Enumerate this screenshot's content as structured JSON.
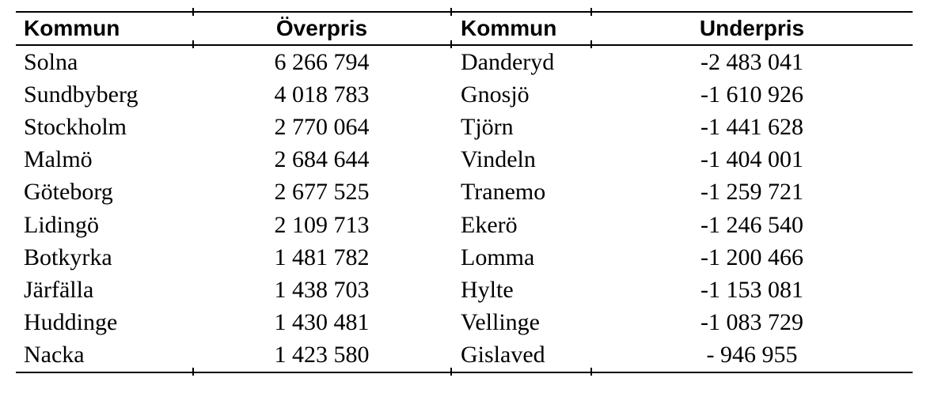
{
  "document": {
    "background": "#ffffff",
    "text_color": "#000000",
    "rule_color": "#000000"
  },
  "chart_data": {
    "type": "table",
    "title": "",
    "columns": [
      "Kommun",
      "Överpris",
      "Kommun",
      "Underpris"
    ],
    "rows": [
      [
        "Solna",
        "6 266 794",
        "Danderyd",
        "-2 483 041"
      ],
      [
        "Sundbyberg",
        "4 018 783",
        "Gnosjö",
        "-1 610 926"
      ],
      [
        "Stockholm",
        "2 770 064",
        "Tjörn",
        "-1 441 628"
      ],
      [
        "Malmö",
        "2 684 644",
        "Vindeln",
        "-1 404 001"
      ],
      [
        "Göteborg",
        "2 677 525",
        "Tranemo",
        "-1 259 721"
      ],
      [
        "Lidingö",
        "2 109 713",
        "Ekerö",
        "-1 246 540"
      ],
      [
        "Botkyrka",
        "1 481 782",
        "Lomma",
        "-1 200 466"
      ],
      [
        "Järfälla",
        "1 438 703",
        "Hylte",
        "-1 153 081"
      ],
      [
        "Huddinge",
        "1 430 481",
        "Vellinge",
        "-1 083 729"
      ],
      [
        "Nacka",
        "1 423 580",
        "Gislaved",
        "- 946 955"
      ]
    ],
    "overpris": {
      "kommuner": [
        "Solna",
        "Sundbyberg",
        "Stockholm",
        "Malmö",
        "Göteborg",
        "Lidingö",
        "Botkyrka",
        "Järfälla",
        "Huddinge",
        "Nacka"
      ],
      "values": [
        6266794,
        4018783,
        2770064,
        2684644,
        2677525,
        2109713,
        1481782,
        1438703,
        1430481,
        1423580
      ]
    },
    "underpris": {
      "kommuner": [
        "Danderyd",
        "Gnosjö",
        "Tjörn",
        "Vindeln",
        "Tranemo",
        "Ekerö",
        "Lomma",
        "Hylte",
        "Vellinge",
        "Gislaved"
      ],
      "values": [
        -2483041,
        -1610926,
        -1441628,
        -1404001,
        -1259721,
        -1246540,
        -1200466,
        -1153081,
        -1083729,
        -946955
      ]
    }
  }
}
